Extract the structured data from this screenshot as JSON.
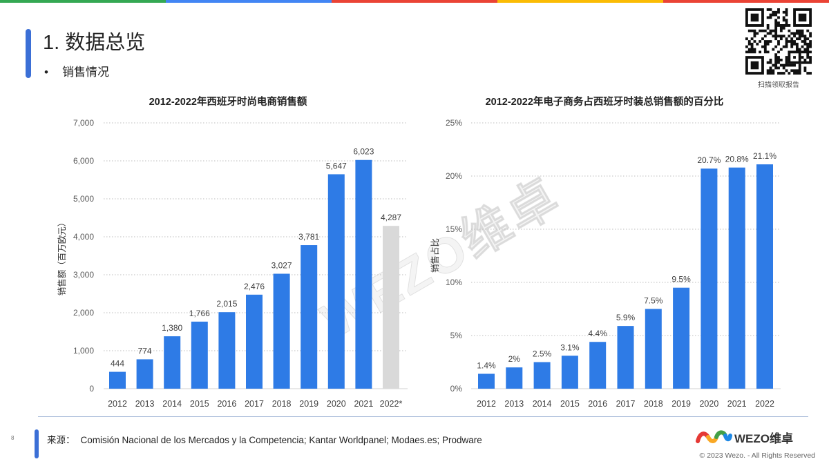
{
  "slide": {
    "title": "1. 数据总览",
    "bullet": "销售情况",
    "qr_caption": "扫描领取报告",
    "watermark": "WEZO维卓",
    "page_number": "8",
    "source_label": "来源：",
    "source_text": "Comisión Nacional de los Mercados y la Competencia; Kantar Worldpanel; Modaes.es; Prodware",
    "logo_text": "WEZO维卓",
    "copyright": "© 2023 Wezo. - All Rights Reserved"
  },
  "colors": {
    "accent": "#3b6fd6",
    "stripe": [
      "#34a853",
      "#4285f4",
      "#ea4335",
      "#fbbc04",
      "#ea4335"
    ]
  },
  "chart_data": [
    {
      "type": "bar",
      "title": "2012-2022年西班牙时尚电商销售额",
      "ylabel": "销售额（百万欧元）",
      "categories": [
        "2012",
        "2013",
        "2014",
        "2015",
        "2016",
        "2017",
        "2018",
        "2019",
        "2020",
        "2021",
        "2022*"
      ],
      "values": [
        444,
        774,
        1380,
        1766,
        2015,
        2476,
        3027,
        3781,
        5647,
        6023,
        4287
      ],
      "data_labels": [
        "444",
        "774",
        "1,380",
        "1,766",
        "2,015",
        "2,476",
        "3,027",
        "3,781",
        "5,647",
        "6,023",
        "4,287"
      ],
      "ylim": [
        0,
        7000
      ],
      "ytick_values": [
        0,
        1000,
        2000,
        3000,
        4000,
        5000,
        6000,
        7000
      ],
      "ytick_labels": [
        "0",
        "1,000",
        "2,000",
        "3,000",
        "4,000",
        "5,000",
        "6,000",
        "7,000"
      ],
      "grid": true,
      "bar_colors": [
        "#2e7be6",
        "#2e7be6",
        "#2e7be6",
        "#2e7be6",
        "#2e7be6",
        "#2e7be6",
        "#2e7be6",
        "#2e7be6",
        "#2e7be6",
        "#2e7be6",
        "#d9d9d9"
      ]
    },
    {
      "type": "bar",
      "title": "2012-2022年电子商务占西班牙时装总销售额的百分比",
      "ylabel": "销售占比",
      "categories": [
        "2012",
        "2013",
        "2014",
        "2015",
        "2016",
        "2017",
        "2018",
        "2019",
        "2020",
        "2021",
        "2022"
      ],
      "values": [
        1.4,
        2,
        2.5,
        3.1,
        4.4,
        5.9,
        7.5,
        9.5,
        20.7,
        20.8,
        21.1
      ],
      "data_labels": [
        "1.4%",
        "2%",
        "2.5%",
        "3.1%",
        "4.4%",
        "5.9%",
        "7.5%",
        "9.5%",
        "20.7%",
        "20.8%",
        "21.1%"
      ],
      "ylim": [
        0,
        25
      ],
      "ytick_values": [
        0,
        5,
        10,
        15,
        20,
        25
      ],
      "ytick_labels": [
        "0%",
        "5%",
        "10%",
        "15%",
        "20%",
        "25%"
      ],
      "grid": true,
      "bar_colors": [
        "#2e7be6",
        "#2e7be6",
        "#2e7be6",
        "#2e7be6",
        "#2e7be6",
        "#2e7be6",
        "#2e7be6",
        "#2e7be6",
        "#2e7be6",
        "#2e7be6",
        "#2e7be6"
      ]
    }
  ]
}
